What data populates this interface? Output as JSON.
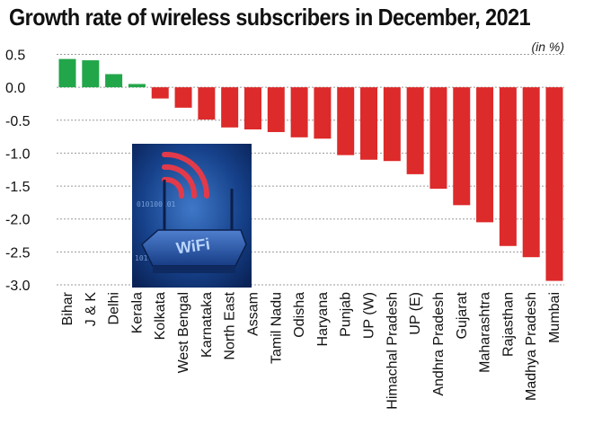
{
  "chart_data": {
    "type": "bar",
    "title": "Growth rate of wireless subscribers in December, 2021",
    "unit": "(in %)",
    "categories": [
      "Bihar",
      "J & K",
      "Delhi",
      "Kerala",
      "Kolkata",
      "West Bengal",
      "Karnataka",
      "North East",
      "Assam",
      "Tamil Nadu",
      "Odisha",
      "Haryana",
      "Punjab",
      "UP (W)",
      "Himachal Pradesh",
      "UP (E)",
      "Andhra Pradesh",
      "Gujarat",
      "Maharashtra",
      "Rajasthan",
      "Madhya Pradesh",
      "Mumbai"
    ],
    "values": [
      0.43,
      0.41,
      0.2,
      0.05,
      -0.17,
      -0.31,
      -0.49,
      -0.61,
      -0.64,
      -0.68,
      -0.76,
      -0.78,
      -1.03,
      -1.1,
      -1.12,
      -1.32,
      -1.54,
      -1.79,
      -2.05,
      -2.41,
      -2.58,
      -2.94
    ],
    "yticks": [
      "0.5",
      "0.0",
      "-0.5",
      "-1.0",
      "-1.5",
      "-2.0",
      "-2.5",
      "-3.0"
    ],
    "ylim": [
      -3.0,
      0.5
    ],
    "grid": "horizontal dotted",
    "colors": {
      "positive": "#22a64a",
      "negative": "#dd2a2a"
    }
  },
  "decorations": {
    "image_icon": "wifi-router-icon",
    "image_text": "WiFi"
  }
}
